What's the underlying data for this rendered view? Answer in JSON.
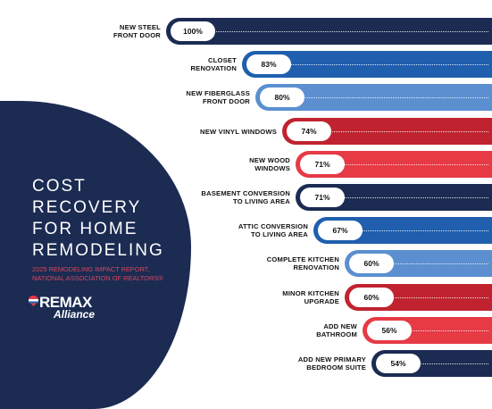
{
  "panel": {
    "title_lines": [
      "COST",
      "RECOVERY",
      "FOR HOME",
      "REMODELING"
    ],
    "subtitle_lines": [
      "2025 REMODELING IMPACT REPORT,",
      "NATIONAL ASSOCIATION OF REALTORS®"
    ],
    "logo_main": "REMAX",
    "logo_sub": "Alliance"
  },
  "colors": {
    "navy": "#1b2b52",
    "blue": "#1f5fae",
    "light_blue": "#5b8fd0",
    "dark_red": "#c0232f",
    "red": "#e63a45"
  },
  "chart_data": {
    "type": "bar",
    "orientation": "horizontal",
    "title": "COST RECOVERY FOR HOME REMODELING",
    "unit": "%",
    "categories": [
      "NEW STEEL FRONT DOOR",
      "CLOSET RENOVATION",
      "NEW FIBERGLASS FRONT DOOR",
      "NEW VINYL WINDOWS",
      "NEW WOOD WINDOWS",
      "BASEMENT CONVERSION TO LIVING AREA",
      "ATTIC CONVERSION TO LIVING AREA",
      "COMPLETE KITCHEN RENOVATION",
      "MINOR KITCHEN UPGRADE",
      "ADD NEW BATHROOM",
      "ADD NEW PRIMARY BEDROOM SUITE"
    ],
    "values": [
      100,
      83,
      80,
      74,
      71,
      71,
      67,
      60,
      60,
      56,
      54
    ],
    "value_labels": [
      "100%",
      "83%",
      "80%",
      "74%",
      "71%",
      "71%",
      "67%",
      "60%",
      "60%",
      "56%",
      "54%"
    ],
    "label_lines": [
      [
        "NEW STEEL",
        "FRONT DOOR"
      ],
      [
        "CLOSET",
        "RENOVATION"
      ],
      [
        "NEW FIBERGLASS",
        "FRONT DOOR"
      ],
      [
        "NEW VINYL WINDOWS"
      ],
      [
        "NEW WOOD",
        "WINDOWS"
      ],
      [
        "BASEMENT CONVERSION",
        "TO LIVING AREA"
      ],
      [
        "ATTIC CONVERSION",
        "TO LIVING AREA"
      ],
      [
        "COMPLETE KITCHEN",
        "RENOVATION"
      ],
      [
        "MINOR KITCHEN",
        "UPGRADE"
      ],
      [
        "ADD NEW",
        "BATHROOM"
      ],
      [
        "ADD NEW PRIMARY",
        "BEDROOM SUITE"
      ]
    ],
    "bar_colors": [
      "navy",
      "blue",
      "light_blue",
      "dark_red",
      "red",
      "navy",
      "blue",
      "light_blue",
      "dark_red",
      "red",
      "navy"
    ],
    "grid": false,
    "legend": "none"
  }
}
